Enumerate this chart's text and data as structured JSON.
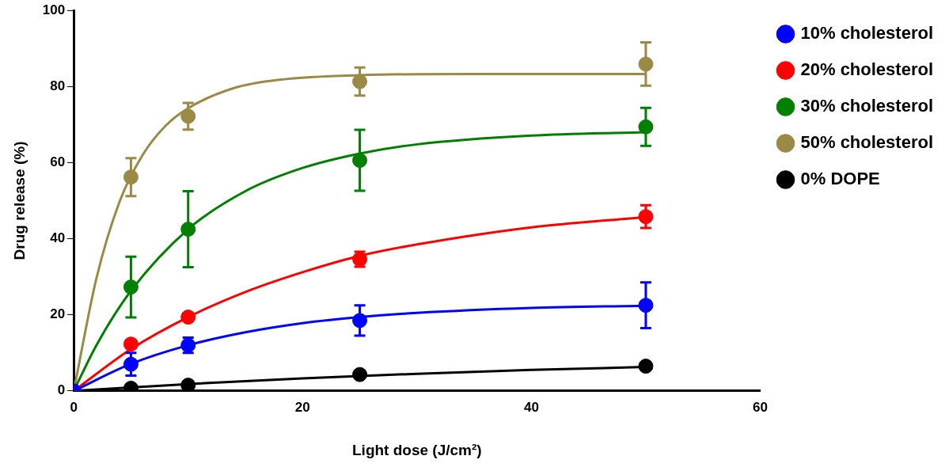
{
  "chart_data": {
    "type": "scatter",
    "xlabel": "Light dose (J/cm²)",
    "ylabel": "Drug release (%)",
    "xlim": [
      0,
      60
    ],
    "xticks": [
      0,
      20,
      40,
      60
    ],
    "ylim": [
      0,
      100
    ],
    "yticks": [
      0,
      20,
      40,
      60,
      80,
      100
    ],
    "grid": false,
    "legend": "right",
    "marker": "circle",
    "x": [
      0,
      5,
      10,
      25,
      50
    ],
    "series": [
      {
        "name": "10% cholesterol",
        "color": "#0000ff",
        "values": [
          0,
          7,
          12,
          18.5,
          22.5
        ],
        "errors": [
          null,
          3,
          2,
          4,
          6
        ]
      },
      {
        "name": "20% cholesterol",
        "color": "#ff0000",
        "values": [
          0,
          12.3,
          19.4,
          34.6,
          45.8
        ],
        "errors": [
          null,
          null,
          1,
          2,
          3
        ]
      },
      {
        "name": "30% cholesterol",
        "color": "#008000",
        "values": [
          null,
          27.3,
          42.5,
          60.6,
          69.4
        ],
        "errors": [
          null,
          8,
          10,
          8,
          5
        ]
      },
      {
        "name": "50% cholesterol",
        "color": "#9b8a45",
        "values": [
          null,
          56.2,
          72.2,
          81.3,
          85.9
        ],
        "errors": [
          null,
          5,
          3.5,
          3.7,
          5.7
        ]
      },
      {
        "name": "0% DOPE",
        "color": "#000000",
        "values": [
          null,
          0.7,
          1.5,
          4.3,
          6.5
        ],
        "errors": [
          null,
          null,
          null,
          null,
          null
        ]
      },
      {
        "type": "line",
        "marker": "none",
        "color": "#0000ff",
        "x": [
          0,
          5,
          10,
          15,
          20,
          25,
          30,
          40,
          50
        ],
        "values": [
          0,
          7.1,
          12,
          15.4,
          17.8,
          19.4,
          20.5,
          21.8,
          22.4
        ]
      },
      {
        "type": "line",
        "marker": "none",
        "color": "#ff0000",
        "x": [
          0,
          5,
          10,
          15,
          20,
          25,
          30,
          40,
          50
        ],
        "values": [
          0,
          11,
          19.4,
          26,
          31.2,
          35.5,
          38.5,
          43,
          45.7
        ]
      },
      {
        "type": "line",
        "marker": "none",
        "color": "#008000",
        "x": [
          0,
          2,
          5,
          10,
          15,
          20,
          25,
          30,
          40,
          50
        ],
        "values": [
          0,
          12.1,
          26.3,
          42.5,
          52.5,
          58.6,
          62.4,
          64.8,
          67.1,
          68
        ]
      },
      {
        "type": "line",
        "marker": "none",
        "color": "#9b8a45",
        "x": [
          0,
          2,
          4,
          6,
          8,
          10,
          14,
          18,
          25,
          35,
          50
        ],
        "values": [
          0,
          29.8,
          49.7,
          61.9,
          69.6,
          74.3,
          79.6,
          81.8,
          83,
          83.3,
          83.3
        ]
      },
      {
        "type": "line",
        "marker": "none",
        "color": "#000000",
        "x": [
          0,
          10,
          20,
          30,
          40,
          50
        ],
        "values": [
          0,
          1.8,
          3.3,
          4.5,
          5.5,
          6.3
        ]
      }
    ]
  }
}
